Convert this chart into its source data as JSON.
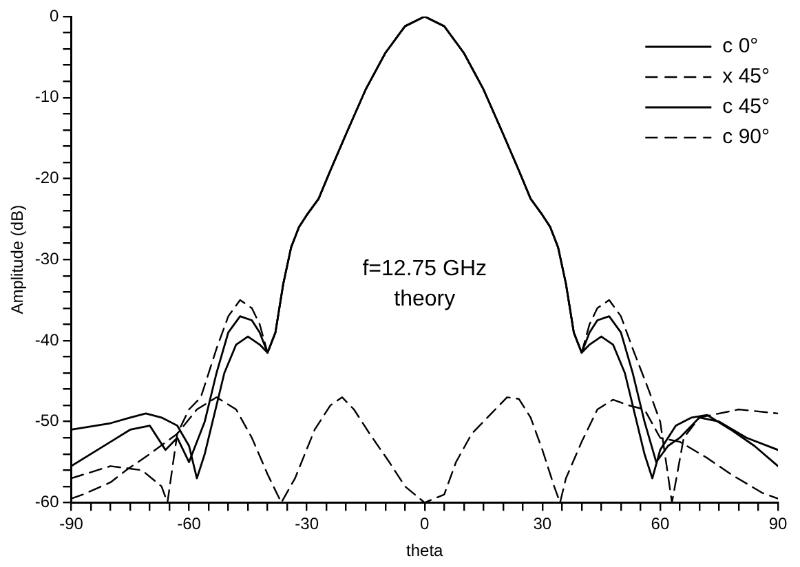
{
  "chart_data": {
    "type": "line",
    "xlabel": "theta",
    "ylabel": "Amplitude (dB)",
    "annotations": [
      "f=12.75 GHz",
      "theory"
    ],
    "xlim": [
      -90,
      90
    ],
    "ylim": [
      -60,
      0
    ],
    "xticks": [
      -90,
      {
        "value": -85,
        "label": null
      },
      {
        "value": -80,
        "label": null
      },
      {
        "value": -75,
        "label": null
      },
      {
        "value": -70,
        "label": null
      },
      {
        "value": -65,
        "label": null
      },
      -60,
      {
        "value": -55,
        "label": null
      },
      {
        "value": -50,
        "label": null
      },
      {
        "value": -45,
        "label": null
      },
      {
        "value": -40,
        "label": null
      },
      {
        "value": -35,
        "label": null
      },
      -30,
      {
        "value": -25,
        "label": null
      },
      {
        "value": -20,
        "label": null
      },
      {
        "value": -15,
        "label": null
      },
      {
        "value": -10,
        "label": null
      },
      {
        "value": -5,
        "label": null
      },
      0,
      {
        "value": 5,
        "label": null
      },
      {
        "value": 10,
        "label": null
      },
      {
        "value": 15,
        "label": null
      },
      {
        "value": 20,
        "label": null
      },
      {
        "value": 25,
        "label": null
      },
      30,
      {
        "value": 35,
        "label": null
      },
      {
        "value": 40,
        "label": null
      },
      {
        "value": 45,
        "label": null
      },
      {
        "value": 50,
        "label": null
      },
      {
        "value": 55,
        "label": null
      },
      60,
      {
        "value": 65,
        "label": null
      },
      {
        "value": 70,
        "label": null
      },
      {
        "value": 75,
        "label": null
      },
      {
        "value": 80,
        "label": null
      },
      {
        "value": 85,
        "label": null
      },
      90
    ],
    "yticks": [
      -60,
      {
        "value": -58,
        "label": null
      },
      {
        "value": -56,
        "label": null
      },
      {
        "value": -54,
        "label": null
      },
      {
        "value": -52,
        "label": null
      },
      -50,
      {
        "value": -48,
        "label": null
      },
      {
        "value": -46,
        "label": null
      },
      {
        "value": -44,
        "label": null
      },
      {
        "value": -42,
        "label": null
      },
      -40,
      {
        "value": -38,
        "label": null
      },
      {
        "value": -36,
        "label": null
      },
      {
        "value": -34,
        "label": null
      },
      {
        "value": -32,
        "label": null
      },
      -30,
      {
        "value": -28,
        "label": null
      },
      {
        "value": -26,
        "label": null
      },
      {
        "value": -24,
        "label": null
      },
      {
        "value": -22,
        "label": null
      },
      -20,
      {
        "value": -18,
        "label": null
      },
      {
        "value": -16,
        "label": null
      },
      {
        "value": -14,
        "label": null
      },
      {
        "value": -12,
        "label": null
      },
      -10,
      {
        "value": -8,
        "label": null
      },
      {
        "value": -6,
        "label": null
      },
      {
        "value": -4,
        "label": null
      },
      {
        "value": -2,
        "label": null
      },
      0
    ],
    "grid": false,
    "legend": "top right",
    "marker": "none",
    "series": [
      {
        "name": "c 0°",
        "color": "#000000",
        "line_style": "solid",
        "x": [
          -90,
          -80,
          -75,
          -71,
          -67,
          -63,
          -60,
          -58,
          -56,
          -54,
          -51,
          -48,
          -45,
          -42,
          -40,
          -38,
          -36,
          -34,
          -32,
          -30,
          -27,
          -24,
          -20,
          -15,
          -10,
          -5,
          0,
          5,
          10,
          15,
          20,
          24,
          27,
          30,
          32,
          34,
          36,
          38,
          40,
          42,
          45,
          48,
          51,
          54,
          56,
          58,
          60,
          64,
          68,
          72,
          78,
          84,
          90
        ],
        "values": [
          -51,
          -50.2,
          -49.5,
          -49,
          -49.5,
          -50.5,
          -53,
          -57,
          -54,
          -50,
          -44,
          -40.5,
          -39.5,
          -40.5,
          -41.5,
          -39,
          -33,
          -28.5,
          -26,
          -24.5,
          -22.5,
          -19,
          -14.5,
          -9,
          -4.5,
          -1.2,
          0,
          -1.2,
          -4.5,
          -9,
          -14.5,
          -19,
          -22.5,
          -24.5,
          -26,
          -28.5,
          -33,
          -39,
          -41.5,
          -40.5,
          -39.5,
          -40.5,
          -44,
          -50,
          -54,
          -57,
          -53.5,
          -50.5,
          -49.5,
          -49.2,
          -51,
          -53,
          -55.5
        ]
      },
      {
        "name": "x 45°",
        "color": "#000000",
        "line_style": "dashed",
        "x": [
          -90,
          -87,
          -80,
          -76,
          -70,
          -63,
          -58,
          -53,
          -48,
          -44,
          -40,
          -36.5,
          -33,
          -28,
          -24,
          -21,
          -18,
          -14,
          -9,
          -5,
          0,
          5,
          8,
          12,
          17,
          21,
          24,
          27,
          30,
          33,
          34.5,
          36,
          40,
          44,
          48,
          52,
          56,
          60,
          65,
          72,
          78,
          86,
          90
        ],
        "values": [
          -59.5,
          -59,
          -57.5,
          -56,
          -54,
          -51.5,
          -48.5,
          -47,
          -48.5,
          -52,
          -56.5,
          -60,
          -57,
          -51,
          -48,
          -47,
          -48.5,
          -51.5,
          -55,
          -58,
          -60,
          -59,
          -55,
          -51.5,
          -49,
          -47,
          -47.2,
          -49.5,
          -53.5,
          -58,
          -60,
          -57,
          -52.5,
          -48.5,
          -47.3,
          -48,
          -48.5,
          -52,
          -52.5,
          -54.5,
          -56.5,
          -58.8,
          -59.5
        ]
      },
      {
        "name": "c 45°",
        "color": "#000000",
        "line_style": "solid",
        "x": [
          -90,
          -80,
          -75,
          -70,
          -66,
          -63,
          -60,
          -56,
          -53,
          -50,
          -47,
          -44,
          -42,
          -40,
          -38,
          -36,
          -34,
          -32,
          -30,
          -27,
          -24,
          -20,
          -15,
          -10,
          -5,
          0,
          5,
          10,
          15,
          20,
          24,
          27,
          30,
          32,
          34,
          36,
          38,
          40,
          42,
          44,
          47,
          50,
          53,
          56,
          59,
          62,
          65,
          70,
          75,
          82,
          90
        ],
        "values": [
          -55.5,
          -52.5,
          -51,
          -50.5,
          -53.5,
          -52,
          -55,
          -50,
          -44,
          -39,
          -37,
          -37.5,
          -39,
          -41.5,
          -39,
          -33,
          -28.5,
          -26,
          -24.5,
          -22.5,
          -19,
          -14.5,
          -9,
          -4.5,
          -1.2,
          0,
          -1.2,
          -4.5,
          -9,
          -14.5,
          -19,
          -22.5,
          -24.5,
          -26,
          -28.5,
          -33,
          -39,
          -41.5,
          -39,
          -37.5,
          -37,
          -39,
          -44,
          -50,
          -55,
          -53,
          -52,
          -49.5,
          -50,
          -52,
          -53.5
        ]
      },
      {
        "name": "c 90°",
        "color": "#000000",
        "line_style": "dashed",
        "x": [
          -90,
          -80,
          -72,
          -67,
          -65.5,
          -63,
          -60,
          -57,
          -53,
          -50,
          -47,
          -44,
          -42,
          -40,
          -38,
          -36,
          -34,
          -32,
          -30,
          -27,
          -24,
          -20,
          -15,
          -10,
          -5,
          0,
          5,
          10,
          15,
          20,
          24,
          27,
          30,
          32,
          34,
          36,
          38,
          40,
          42,
          44,
          47,
          50,
          53,
          57,
          60,
          63,
          66,
          70,
          80,
          90
        ],
        "values": [
          -57,
          -55.5,
          -56,
          -58,
          -60,
          -51.5,
          -48.5,
          -47,
          -41,
          -37,
          -35,
          -36,
          -38,
          -41.5,
          -39,
          -33,
          -28.5,
          -26,
          -24.5,
          -22.5,
          -19,
          -14.5,
          -9,
          -4.5,
          -1.2,
          0,
          -1.2,
          -4.5,
          -9,
          -14.5,
          -19,
          -22.5,
          -24.5,
          -26,
          -28.5,
          -33,
          -39,
          -41.5,
          -38,
          -36,
          -35,
          -37,
          -41,
          -46,
          -50,
          -60,
          -52,
          -49.5,
          -48.5,
          -49
        ]
      }
    ]
  }
}
